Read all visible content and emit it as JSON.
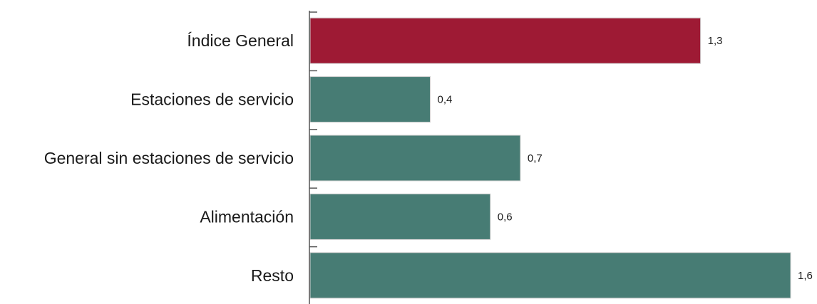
{
  "chart_data": {
    "type": "bar",
    "orientation": "horizontal",
    "categories": [
      "Índice General",
      "Estaciones de servicio",
      "General sin estaciones de servicio",
      "Alimentación",
      "Resto"
    ],
    "values": [
      1.3,
      0.4,
      0.7,
      0.6,
      1.6
    ],
    "value_labels": [
      "1,3",
      "0,4",
      "0,7",
      "0,6",
      "1,6"
    ],
    "colors": [
      "#9E1A34",
      "#477C74",
      "#477C74",
      "#477C74",
      "#477C74"
    ],
    "title": "",
    "xlabel": "",
    "ylabel": "",
    "xlim": [
      0,
      1.6
    ],
    "grid": false,
    "legend": "none"
  }
}
